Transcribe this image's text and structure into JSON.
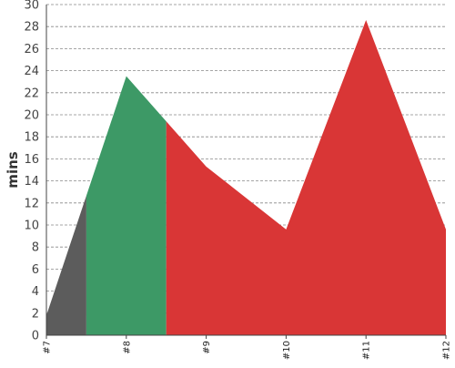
{
  "chart_data": {
    "type": "area",
    "title": "",
    "xlabel": "",
    "ylabel": "mins",
    "ylim": [
      0,
      30
    ],
    "y_ticks": [
      0,
      2,
      4,
      6,
      8,
      10,
      12,
      14,
      16,
      18,
      20,
      22,
      24,
      26,
      28,
      30
    ],
    "x_ticks": [
      "#7",
      "#8",
      "#9",
      "#10",
      "#11",
      "#12"
    ],
    "grid": true,
    "legend": "none",
    "points": [
      {
        "x": "#7",
        "y": 1.8
      },
      {
        "x": "#8",
        "y": 23.5
      },
      {
        "x": "#9",
        "y": 15.3
      },
      {
        "x": "#10",
        "y": 9.6
      },
      {
        "x": "#11",
        "y": 28.6
      },
      {
        "x": "#12",
        "y": 9.6
      }
    ],
    "segments": [
      {
        "from": "#7",
        "to": "#7.5",
        "color": "#5c5c5c"
      },
      {
        "from": "#7.5",
        "to": "#8.5",
        "color": "#3d9966"
      },
      {
        "from": "#8.5",
        "to": "#12",
        "color": "#d93636"
      }
    ]
  }
}
